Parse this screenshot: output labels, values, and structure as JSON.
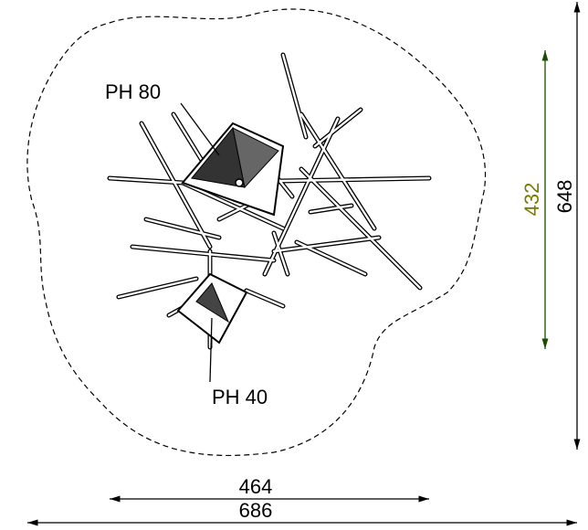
{
  "labels": {
    "top_platform": "PH 80",
    "bottom_platform": "PH 40"
  },
  "dimensions": {
    "inner_width": "464",
    "outer_width": "686",
    "inner_height": "432",
    "outer_height": "648"
  }
}
